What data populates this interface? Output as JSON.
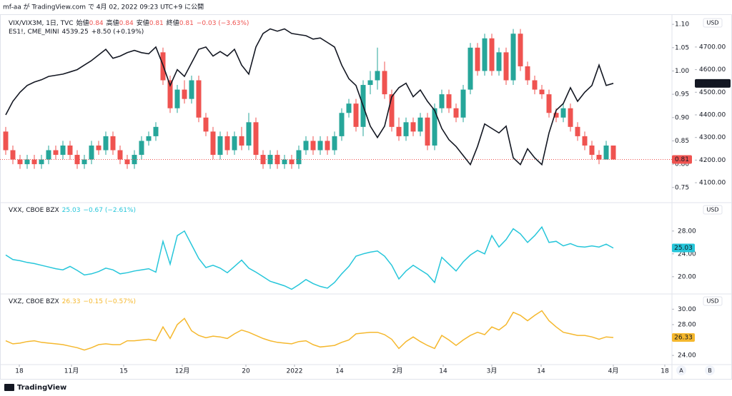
{
  "header": "mf-aa が TradingView.com で 4月 02, 2022 09:23 UTC+9 に公開",
  "footer": "TradingView",
  "buttons": [
    "A",
    "B"
  ],
  "chart_data": [
    {
      "type": "candlestick",
      "name": "VIX/VIX3M, 1日, TVC",
      "ohlc_fields": [
        {
          "label": "始値",
          "value": 0.84
        },
        {
          "label": "高値",
          "value": 0.84
        },
        {
          "label": "安値",
          "value": 0.81
        },
        {
          "label": "終値",
          "value": 0.81
        }
      ],
      "change": "−0.03 (−3.63%)",
      "currency": "USD",
      "up_color": "#26a69a",
      "down_color": "#ef5350",
      "candles": [
        [
          0.87,
          0.88,
          0.82,
          0.83
        ],
        [
          0.83,
          0.84,
          0.8,
          0.81
        ],
        [
          0.81,
          0.82,
          0.79,
          0.8
        ],
        [
          0.8,
          0.82,
          0.79,
          0.81
        ],
        [
          0.81,
          0.82,
          0.79,
          0.8
        ],
        [
          0.8,
          0.82,
          0.79,
          0.81
        ],
        [
          0.81,
          0.84,
          0.8,
          0.83
        ],
        [
          0.83,
          0.84,
          0.81,
          0.82
        ],
        [
          0.82,
          0.85,
          0.81,
          0.84
        ],
        [
          0.84,
          0.85,
          0.81,
          0.82
        ],
        [
          0.82,
          0.83,
          0.79,
          0.8
        ],
        [
          0.8,
          0.82,
          0.79,
          0.81
        ],
        [
          0.81,
          0.85,
          0.8,
          0.84
        ],
        [
          0.84,
          0.85,
          0.82,
          0.83
        ],
        [
          0.83,
          0.87,
          0.82,
          0.86
        ],
        [
          0.86,
          0.87,
          0.82,
          0.83
        ],
        [
          0.83,
          0.84,
          0.8,
          0.81
        ],
        [
          0.81,
          0.82,
          0.79,
          0.8
        ],
        [
          0.8,
          0.83,
          0.79,
          0.82
        ],
        [
          0.82,
          0.86,
          0.81,
          0.85
        ],
        [
          0.85,
          0.87,
          0.84,
          0.86
        ],
        [
          0.86,
          0.89,
          0.85,
          0.88
        ],
        [
          1.04,
          1.05,
          0.97,
          0.98
        ],
        [
          0.98,
          0.99,
          0.91,
          0.92
        ],
        [
          0.92,
          0.97,
          0.91,
          0.96
        ],
        [
          0.96,
          0.98,
          0.93,
          0.94
        ],
        [
          0.94,
          0.99,
          0.93,
          0.98
        ],
        [
          0.98,
          0.99,
          0.89,
          0.9
        ],
        [
          0.9,
          0.91,
          0.86,
          0.87
        ],
        [
          0.87,
          0.88,
          0.81,
          0.82
        ],
        [
          0.82,
          0.87,
          0.81,
          0.86
        ],
        [
          0.86,
          0.87,
          0.82,
          0.83
        ],
        [
          0.83,
          0.87,
          0.82,
          0.86
        ],
        [
          0.86,
          0.88,
          0.83,
          0.84
        ],
        [
          0.84,
          0.91,
          0.83,
          0.89
        ],
        [
          0.89,
          0.9,
          0.81,
          0.82
        ],
        [
          0.82,
          0.83,
          0.79,
          0.8
        ],
        [
          0.8,
          0.83,
          0.79,
          0.82
        ],
        [
          0.82,
          0.83,
          0.79,
          0.8
        ],
        [
          0.8,
          0.82,
          0.79,
          0.81
        ],
        [
          0.81,
          0.82,
          0.79,
          0.8
        ],
        [
          0.8,
          0.84,
          0.79,
          0.83
        ],
        [
          0.83,
          0.86,
          0.82,
          0.85
        ],
        [
          0.85,
          0.86,
          0.82,
          0.83
        ],
        [
          0.83,
          0.86,
          0.82,
          0.85
        ],
        [
          0.85,
          0.86,
          0.82,
          0.83
        ],
        [
          0.83,
          0.87,
          0.82,
          0.86
        ],
        [
          0.86,
          0.92,
          0.85,
          0.91
        ],
        [
          0.91,
          0.94,
          0.9,
          0.93
        ],
        [
          0.93,
          0.94,
          0.87,
          0.88
        ],
        [
          0.88,
          0.98,
          0.86,
          0.97
        ],
        [
          0.97,
          1.0,
          0.95,
          0.98
        ],
        [
          0.98,
          1.05,
          0.96,
          1.0
        ],
        [
          1.0,
          1.02,
          0.94,
          0.95
        ],
        [
          0.95,
          0.96,
          0.87,
          0.88
        ],
        [
          0.88,
          0.9,
          0.85,
          0.86
        ],
        [
          0.86,
          0.9,
          0.85,
          0.89
        ],
        [
          0.89,
          0.9,
          0.86,
          0.87
        ],
        [
          0.87,
          0.91,
          0.86,
          0.9
        ],
        [
          0.9,
          0.91,
          0.83,
          0.84
        ],
        [
          0.84,
          0.93,
          0.83,
          0.92
        ],
        [
          0.92,
          0.96,
          0.91,
          0.95
        ],
        [
          0.95,
          0.96,
          0.91,
          0.92
        ],
        [
          0.92,
          0.93,
          0.89,
          0.9
        ],
        [
          0.9,
          0.97,
          0.89,
          0.96
        ],
        [
          0.96,
          1.06,
          0.95,
          1.05
        ],
        [
          1.05,
          1.06,
          0.99,
          1.0
        ],
        [
          1.0,
          1.08,
          0.99,
          1.07
        ],
        [
          1.07,
          1.08,
          0.99,
          1.0
        ],
        [
          1.0,
          1.05,
          0.99,
          1.04
        ],
        [
          1.04,
          1.05,
          0.97,
          0.98
        ],
        [
          0.98,
          1.09,
          0.97,
          1.08
        ],
        [
          1.08,
          1.09,
          1.0,
          1.01
        ],
        [
          1.01,
          1.02,
          0.97,
          0.98
        ],
        [
          0.98,
          0.99,
          0.95,
          0.96
        ],
        [
          0.96,
          0.97,
          0.94,
          0.95
        ],
        [
          0.95,
          0.96,
          0.9,
          0.91
        ],
        [
          0.91,
          0.92,
          0.89,
          0.9
        ],
        [
          0.9,
          0.93,
          0.89,
          0.92
        ],
        [
          0.92,
          0.93,
          0.87,
          0.88
        ],
        [
          0.88,
          0.89,
          0.85,
          0.86
        ],
        [
          0.86,
          0.87,
          0.83,
          0.84
        ],
        [
          0.84,
          0.85,
          0.81,
          0.82
        ],
        [
          0.82,
          0.83,
          0.8,
          0.81
        ],
        [
          0.81,
          0.85,
          0.81,
          0.84
        ],
        [
          0.84,
          0.84,
          0.81,
          0.81
        ]
      ],
      "ylim": [
        0.719,
        1.114
      ],
      "yticks": [
        {
          "value": 0.75,
          "label": "0.75"
        },
        {
          "value": 0.8,
          "label": "0.80"
        },
        {
          "value": 0.85,
          "label": "0.85"
        },
        {
          "value": 0.9,
          "label": "0.90"
        },
        {
          "value": 0.95,
          "label": "0.95"
        },
        {
          "value": 1.0,
          "label": "1.00"
        },
        {
          "value": 1.05,
          "label": "1.05"
        },
        {
          "value": 1.1,
          "label": "1.10"
        }
      ],
      "series": [
        {
          "name": "ES1!, CME_MINI",
          "color": "#131722",
          "axis": "y2",
          "change": "+8.50 (+0.19%)",
          "values": [
            4400,
            4460,
            4500,
            4530,
            4545,
            4555,
            4570,
            4575,
            4580,
            4590,
            4600,
            4620,
            4640,
            4665,
            4690,
            4650,
            4660,
            4675,
            4685,
            4675,
            4670,
            4700,
            4620,
            4530,
            4600,
            4570,
            4630,
            4690,
            4700,
            4660,
            4680,
            4660,
            4690,
            4620,
            4580,
            4700,
            4760,
            4780,
            4770,
            4780,
            4760,
            4755,
            4750,
            4735,
            4740,
            4720,
            4700,
            4620,
            4560,
            4530,
            4440,
            4350,
            4300,
            4350,
            4480,
            4520,
            4540,
            4480,
            4510,
            4460,
            4420,
            4340,
            4290,
            4260,
            4220,
            4180,
            4260,
            4360,
            4340,
            4320,
            4350,
            4210,
            4180,
            4250,
            4210,
            4180,
            4320,
            4420,
            4450,
            4520,
            4460,
            4500,
            4530,
            4620,
            4530,
            4539.25
          ]
        }
      ],
      "y2lim": [
        4015,
        4829
      ],
      "y2ticks": [
        {
          "value": 4100,
          "label": "4100.00"
        },
        {
          "value": 4200,
          "label": "4200.00"
        },
        {
          "value": 4300,
          "label": "4300.00"
        },
        {
          "value": 4400,
          "label": "4400.00"
        },
        {
          "value": 4500,
          "label": "4500.00"
        },
        {
          "value": 4600,
          "label": "4600.00"
        },
        {
          "value": 4700,
          "label": "4700.00"
        }
      ]
    },
    {
      "type": "line",
      "currency": "USD",
      "series": [
        {
          "name": "VXX, CBOE BZX",
          "color": "#26c6da",
          "change": "−0.67 (−2.61%)",
          "values": [
            23.8,
            23.0,
            22.8,
            22.5,
            22.3,
            22.0,
            21.7,
            21.4,
            21.2,
            21.8,
            21.1,
            20.3,
            20.5,
            20.9,
            21.5,
            21.2,
            20.5,
            20.7,
            21.0,
            21.2,
            21.4,
            20.8,
            26.2,
            22.2,
            27.2,
            28.0,
            25.6,
            23.2,
            21.6,
            22.0,
            21.5,
            20.7,
            21.8,
            22.9,
            21.5,
            20.8,
            20.0,
            19.2,
            18.8,
            18.4,
            17.8,
            18.6,
            19.5,
            18.8,
            18.3,
            18.0,
            19.0,
            20.5,
            21.8,
            23.6,
            24.0,
            24.3,
            24.5,
            23.6,
            22.0,
            19.6,
            21.0,
            22.0,
            21.2,
            20.4,
            19.0,
            23.4,
            22.2,
            21.0,
            22.6,
            23.8,
            24.6,
            24.0,
            27.2,
            25.2,
            26.5,
            28.4,
            27.5,
            26.0,
            27.2,
            28.7,
            26.0,
            26.2,
            25.4,
            25.8,
            25.3,
            25.2,
            25.4,
            25.2,
            25.7,
            25.03
          ]
        }
      ],
      "ylim": [
        17.1,
        32.6
      ],
      "yticks": [
        {
          "value": 20,
          "label": "20.00"
        },
        {
          "value": 24,
          "label": "24.00"
        },
        {
          "value": 28,
          "label": "28.00"
        }
      ]
    },
    {
      "type": "line",
      "currency": "USD",
      "series": [
        {
          "name": "VXZ, CBOE BZX",
          "color": "#f5b82e",
          "change": "−0.15 (−0.57%)",
          "values": [
            25.9,
            25.5,
            25.6,
            25.8,
            25.9,
            25.7,
            25.6,
            25.5,
            25.4,
            25.2,
            25.0,
            24.7,
            25.0,
            25.4,
            25.5,
            25.4,
            25.4,
            25.9,
            25.9,
            26.0,
            26.1,
            25.9,
            27.7,
            26.2,
            28.0,
            28.8,
            27.2,
            26.6,
            26.3,
            26.5,
            26.4,
            26.2,
            26.8,
            27.3,
            27.0,
            26.6,
            26.2,
            25.9,
            25.7,
            25.6,
            25.5,
            25.8,
            25.9,
            25.4,
            25.1,
            25.2,
            25.3,
            25.7,
            26.0,
            26.8,
            26.9,
            27.0,
            27.0,
            26.7,
            26.1,
            24.9,
            25.8,
            26.4,
            25.8,
            25.3,
            24.9,
            26.6,
            26.0,
            25.3,
            26.0,
            26.6,
            27.0,
            26.7,
            27.7,
            27.3,
            28.0,
            29.6,
            29.2,
            28.5,
            29.2,
            29.8,
            28.5,
            27.7,
            27.0,
            26.8,
            26.6,
            26.6,
            26.4,
            26.1,
            26.4,
            26.33
          ]
        }
      ],
      "ylim": [
        22.9,
        31.7
      ],
      "yticks": [
        {
          "value": 24,
          "label": "24.00"
        },
        {
          "value": 28,
          "label": "28.00"
        },
        {
          "value": 30,
          "label": "30.00"
        }
      ],
      "xlim": [
        -0.8,
        93.2
      ],
      "xticks": [
        {
          "value": 1.9,
          "label": "18"
        },
        {
          "value": 9.2,
          "label": "11月"
        },
        {
          "value": 16.5,
          "label": "15"
        },
        {
          "value": 24.7,
          "label": "12月"
        },
        {
          "value": 33.6,
          "label": "20"
        },
        {
          "value": 40.4,
          "label": "2022"
        },
        {
          "value": 46.7,
          "label": "14"
        },
        {
          "value": 54.8,
          "label": "2月"
        },
        {
          "value": 61.2,
          "label": "14"
        },
        {
          "value": 68,
          "label": "3月"
        },
        {
          "value": 74.9,
          "label": "14"
        },
        {
          "value": 85,
          "label": "4月"
        },
        {
          "value": 92.2,
          "label": "18"
        }
      ]
    }
  ]
}
